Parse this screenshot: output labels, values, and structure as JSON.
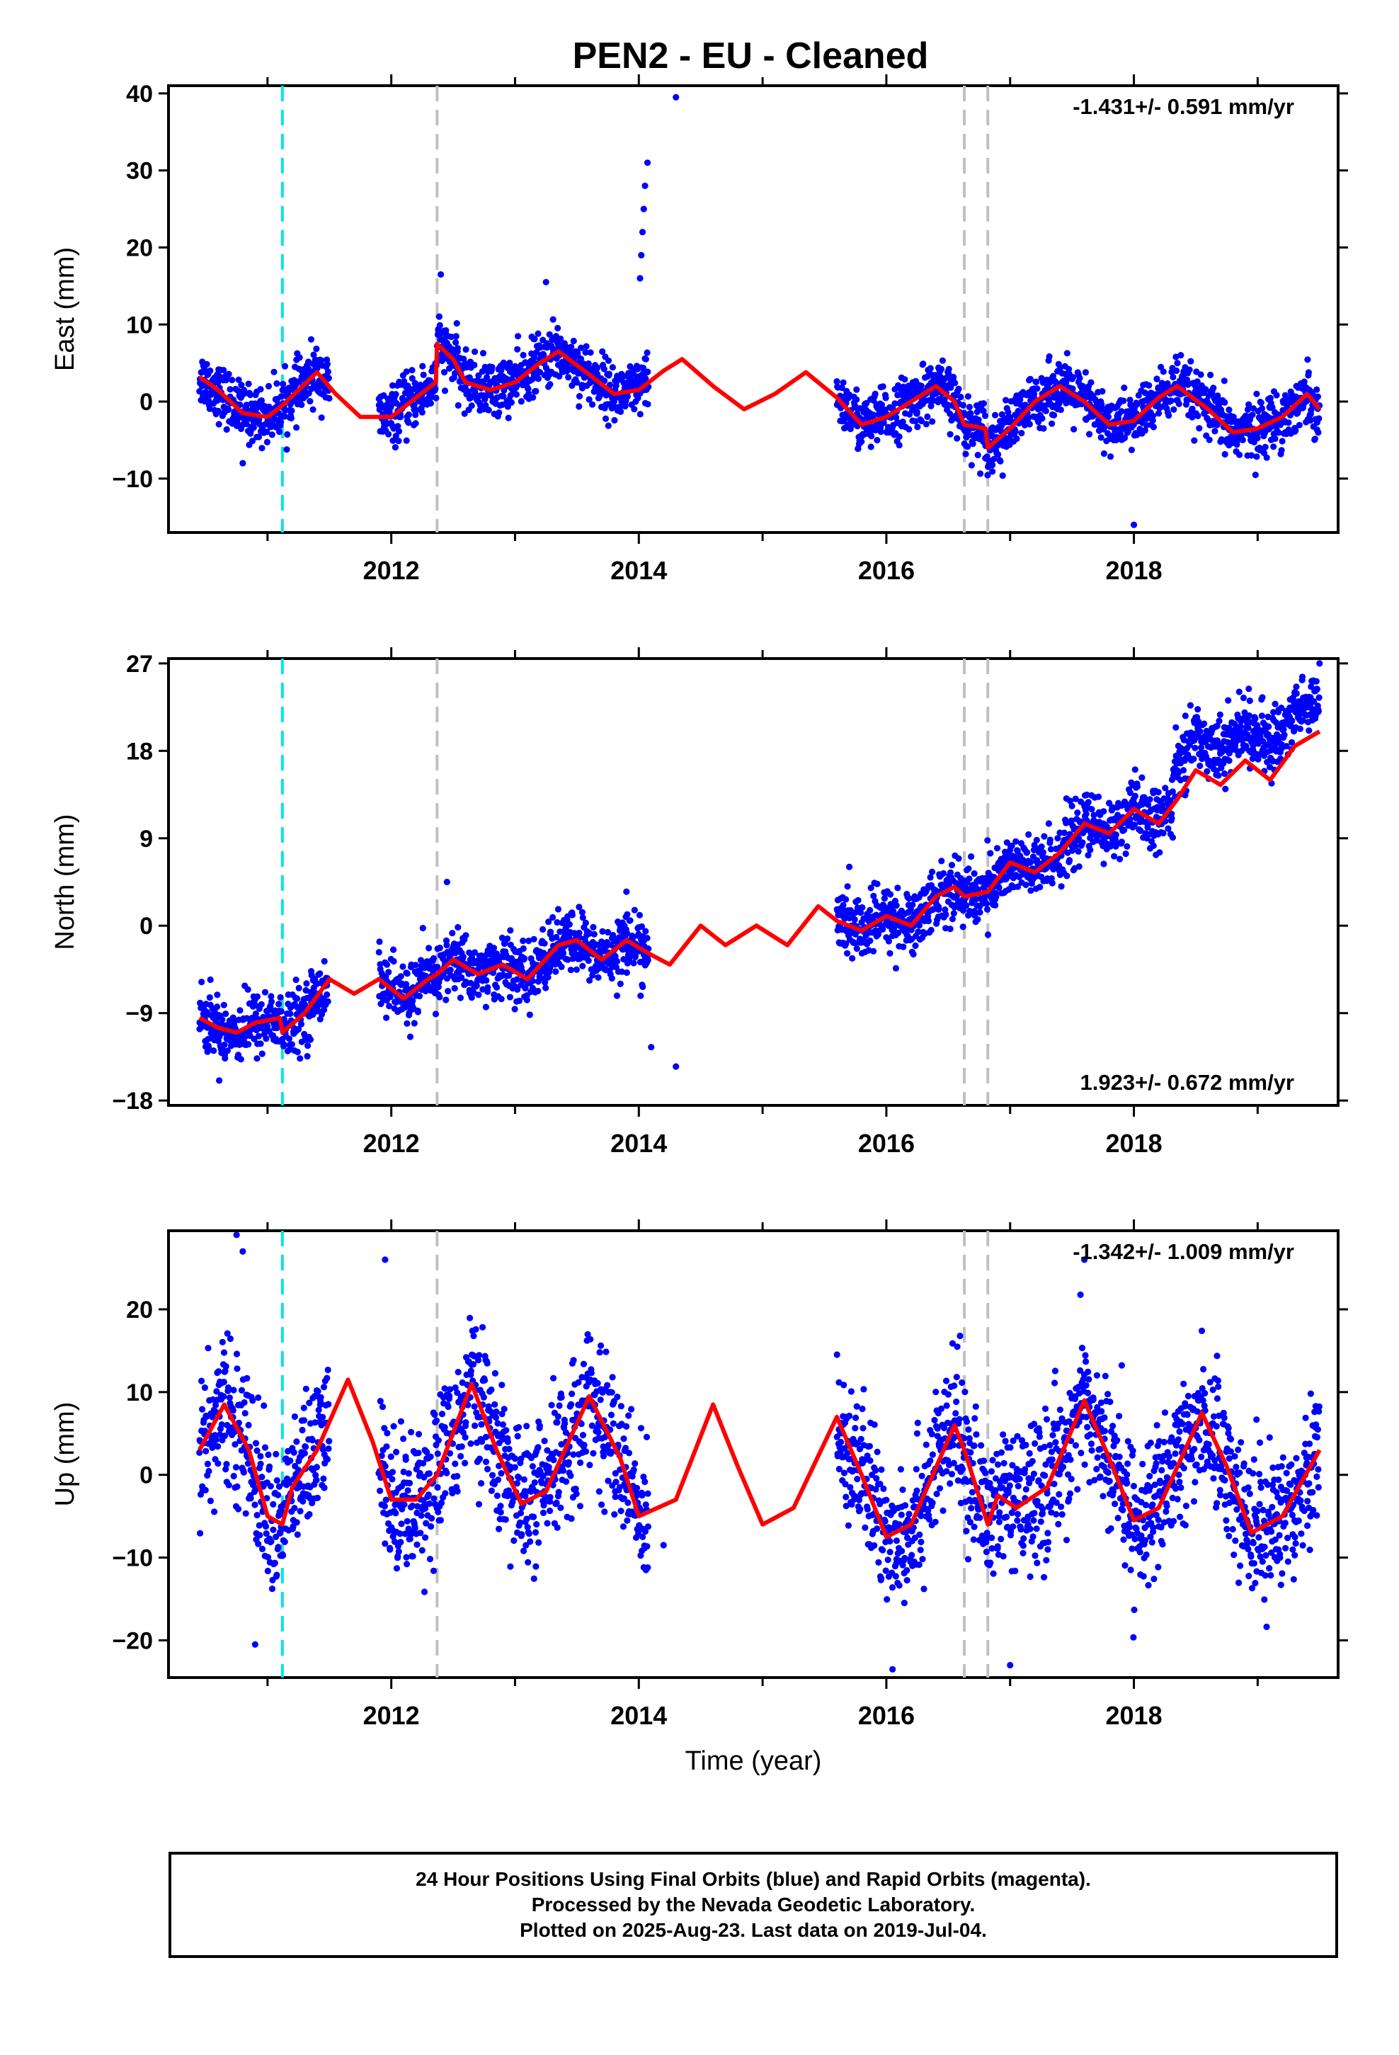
{
  "title": "PEN2  - EU - Cleaned",
  "colors": {
    "points": "#0000ff",
    "model": "#ff0000",
    "steps_cyan": "#00e5e5",
    "steps_gray": "#c0c0c0",
    "axes": "#000000"
  },
  "caption": {
    "line1": "24 Hour Positions Using Final Orbits (blue) and Rapid Orbits (magenta).",
    "line2": "Processed by the Nevada Geodetic Laboratory.",
    "line3": "Plotted on 2025-Aug-23. Last data on 2019-Jul-04."
  },
  "chart_data": [
    {
      "type": "scatter",
      "component": "east",
      "ylabel": "East (mm)",
      "xlabel": "",
      "rate_label": "-1.431+/- 0.591 mm/yr",
      "rate_position": "top-right",
      "xlim": [
        2010.2,
        2019.65
      ],
      "ylim": [
        -17,
        41
      ],
      "x_major_ticks": [
        2012,
        2014,
        2016,
        2018
      ],
      "x_minor_ticks": [
        2011,
        2013,
        2015,
        2017,
        2019
      ],
      "y_ticks": [
        40,
        30,
        20,
        10,
        0,
        -10
      ],
      "y_tick_labels": [
        "40",
        "30",
        "20",
        "10",
        "0",
        "−10"
      ],
      "grid": false,
      "step_lines": [
        {
          "x": 2011.12,
          "color": "cyan"
        },
        {
          "x": 2012.37,
          "color": "gray"
        },
        {
          "x": 2016.63,
          "color": "gray"
        },
        {
          "x": 2016.82,
          "color": "gray"
        }
      ],
      "data_segments": [
        {
          "start": 2010.45,
          "end": 2011.5
        },
        {
          "start": 2011.9,
          "end": 2014.08
        },
        {
          "start": 2015.6,
          "end": 2019.5
        }
      ],
      "model_curve": [
        [
          2010.45,
          3.2
        ],
        [
          2010.6,
          1.5
        ],
        [
          2010.8,
          -1.5
        ],
        [
          2011.0,
          -2.0
        ],
        [
          2011.12,
          -0.5
        ],
        [
          2011.25,
          1.5
        ],
        [
          2011.4,
          3.8
        ],
        [
          2011.55,
          1.0
        ],
        [
          2011.75,
          -2.0
        ],
        [
          2012.0,
          -2.0
        ],
        [
          2012.2,
          0.5
        ],
        [
          2012.36,
          2.5
        ],
        [
          2012.37,
          7.5
        ],
        [
          2012.5,
          5.5
        ],
        [
          2012.6,
          2.5
        ],
        [
          2012.8,
          1.5
        ],
        [
          2013.0,
          2.5
        ],
        [
          2013.2,
          5.0
        ],
        [
          2013.35,
          6.5
        ],
        [
          2013.6,
          3.5
        ],
        [
          2013.8,
          1.0
        ],
        [
          2014.0,
          1.5
        ],
        [
          2014.2,
          4.0
        ],
        [
          2014.35,
          5.5
        ],
        [
          2014.6,
          2.0
        ],
        [
          2014.85,
          -1.0
        ],
        [
          2015.1,
          1.0
        ],
        [
          2015.35,
          3.8
        ],
        [
          2015.6,
          0.5
        ],
        [
          2015.8,
          -3.0
        ],
        [
          2016.0,
          -2.0
        ],
        [
          2016.2,
          0.0
        ],
        [
          2016.4,
          2.0
        ],
        [
          2016.55,
          0.0
        ],
        [
          2016.63,
          -3.0
        ],
        [
          2016.8,
          -3.5
        ],
        [
          2016.82,
          -6.0
        ],
        [
          2017.0,
          -3.5
        ],
        [
          2017.2,
          0.0
        ],
        [
          2017.4,
          2.0
        ],
        [
          2017.6,
          0.0
        ],
        [
          2017.8,
          -3.0
        ],
        [
          2018.0,
          -2.5
        ],
        [
          2018.2,
          0.5
        ],
        [
          2018.35,
          2.0
        ],
        [
          2018.6,
          -1.0
        ],
        [
          2018.8,
          -4.0
        ],
        [
          2019.0,
          -3.5
        ],
        [
          2019.2,
          -2.0
        ],
        [
          2019.4,
          1.0
        ],
        [
          2019.5,
          -1.0
        ]
      ],
      "outliers": [
        [
          2012.4,
          16.5
        ],
        [
          2013.25,
          15.5
        ],
        [
          2014.07,
          31
        ],
        [
          2014.05,
          28
        ],
        [
          2014.04,
          25
        ],
        [
          2014.03,
          22
        ],
        [
          2014.02,
          19
        ],
        [
          2014.01,
          16
        ],
        [
          2014.3,
          39.5
        ],
        [
          2010.8,
          -8
        ],
        [
          2018.0,
          -16
        ]
      ]
    },
    {
      "type": "scatter",
      "component": "north",
      "ylabel": "North (mm)",
      "xlabel": "",
      "rate_label": "1.923+/- 0.672 mm/yr",
      "rate_position": "bottom-right",
      "xlim": [
        2010.2,
        2019.65
      ],
      "ylim": [
        -18.5,
        27.5
      ],
      "x_major_ticks": [
        2012,
        2014,
        2016,
        2018
      ],
      "x_minor_ticks": [
        2011,
        2013,
        2015,
        2017,
        2019
      ],
      "y_ticks": [
        27,
        18,
        9,
        0,
        -9,
        -18
      ],
      "y_tick_labels": [
        "27",
        "18",
        "9",
        "0",
        "−9",
        "−18"
      ],
      "grid": false,
      "step_lines": [
        {
          "x": 2011.12,
          "color": "cyan"
        },
        {
          "x": 2012.37,
          "color": "gray"
        },
        {
          "x": 2016.63,
          "color": "gray"
        },
        {
          "x": 2016.82,
          "color": "gray"
        }
      ],
      "data_segments": [
        {
          "start": 2010.45,
          "end": 2011.5
        },
        {
          "start": 2011.9,
          "end": 2014.08
        },
        {
          "start": 2015.6,
          "end": 2018.3
        },
        {
          "start": 2018.3,
          "end": 2019.5
        }
      ],
      "model_curve": [
        [
          2010.45,
          -9.5
        ],
        [
          2010.6,
          -10.5
        ],
        [
          2010.75,
          -11.0
        ],
        [
          2010.9,
          -10.0
        ],
        [
          2011.1,
          -9.5
        ],
        [
          2011.12,
          -11.0
        ],
        [
          2011.3,
          -9.0
        ],
        [
          2011.5,
          -5.5
        ],
        [
          2011.7,
          -7.0
        ],
        [
          2011.9,
          -5.5
        ],
        [
          2012.1,
          -7.5
        ],
        [
          2012.3,
          -5.5
        ],
        [
          2012.37,
          -5.0
        ],
        [
          2012.5,
          -3.5
        ],
        [
          2012.7,
          -5.0
        ],
        [
          2012.9,
          -4.0
        ],
        [
          2013.1,
          -5.5
        ],
        [
          2013.35,
          -2.0
        ],
        [
          2013.5,
          -1.5
        ],
        [
          2013.7,
          -3.5
        ],
        [
          2013.9,
          -1.5
        ],
        [
          2014.1,
          -3.0
        ],
        [
          2014.25,
          -4.0
        ],
        [
          2014.5,
          0.0
        ],
        [
          2014.7,
          -2.0
        ],
        [
          2014.95,
          0.0
        ],
        [
          2015.2,
          -2.0
        ],
        [
          2015.45,
          2.0
        ],
        [
          2015.6,
          0.5
        ],
        [
          2015.8,
          -0.5
        ],
        [
          2016.0,
          1.0
        ],
        [
          2016.2,
          0.0
        ],
        [
          2016.4,
          3.0
        ],
        [
          2016.55,
          4.0
        ],
        [
          2016.63,
          3.0
        ],
        [
          2016.82,
          3.5
        ],
        [
          2017.0,
          6.5
        ],
        [
          2017.2,
          5.5
        ],
        [
          2017.4,
          7.5
        ],
        [
          2017.6,
          10.5
        ],
        [
          2017.8,
          9.5
        ],
        [
          2018.0,
          12.0
        ],
        [
          2018.2,
          10.5
        ],
        [
          2018.35,
          13.0
        ],
        [
          2018.5,
          16.0
        ],
        [
          2018.7,
          14.5
        ],
        [
          2018.9,
          17.0
        ],
        [
          2019.1,
          15.0
        ],
        [
          2019.3,
          18.5
        ],
        [
          2019.5,
          20.0
        ]
      ],
      "outliers": [
        [
          2012.45,
          4.5
        ],
        [
          2013.9,
          3.5
        ],
        [
          2014.3,
          -14.5
        ],
        [
          2014.1,
          -12.5
        ],
        [
          2019.5,
          27
        ]
      ]
    },
    {
      "type": "scatter",
      "component": "up",
      "ylabel": "Up (mm)",
      "xlabel": "Time (year)",
      "rate_label": "-1.342+/- 1.009 mm/yr",
      "rate_position": "top-right",
      "xlim": [
        2010.2,
        2019.65
      ],
      "ylim": [
        -24.5,
        29.5
      ],
      "x_major_ticks": [
        2012,
        2014,
        2016,
        2018
      ],
      "x_minor_ticks": [
        2011,
        2013,
        2015,
        2017,
        2019
      ],
      "y_ticks": [
        20,
        10,
        0,
        -10,
        -20
      ],
      "y_tick_labels": [
        "20",
        "10",
        "0",
        "−10",
        "−20"
      ],
      "grid": false,
      "step_lines": [
        {
          "x": 2011.12,
          "color": "cyan"
        },
        {
          "x": 2012.37,
          "color": "gray"
        },
        {
          "x": 2016.63,
          "color": "gray"
        },
        {
          "x": 2016.82,
          "color": "gray"
        }
      ],
      "data_segments": [
        {
          "start": 2010.45,
          "end": 2011.5
        },
        {
          "start": 2011.9,
          "end": 2014.08
        },
        {
          "start": 2015.6,
          "end": 2019.5
        }
      ],
      "model_curve": [
        [
          2010.45,
          3.0
        ],
        [
          2010.65,
          8.5
        ],
        [
          2010.85,
          3.0
        ],
        [
          2011.0,
          -5.0
        ],
        [
          2011.12,
          -6.0
        ],
        [
          2011.2,
          -1.5
        ],
        [
          2011.4,
          3.0
        ],
        [
          2011.65,
          11.5
        ],
        [
          2011.85,
          4.0
        ],
        [
          2012.0,
          -3.0
        ],
        [
          2012.2,
          -3.0
        ],
        [
          2012.37,
          0.0
        ],
        [
          2012.65,
          11.0
        ],
        [
          2012.85,
          3.0
        ],
        [
          2013.05,
          -3.5
        ],
        [
          2013.25,
          -2.0
        ],
        [
          2013.6,
          9.5
        ],
        [
          2013.85,
          2.0
        ],
        [
          2014.0,
          -5.0
        ],
        [
          2014.3,
          -3.0
        ],
        [
          2014.6,
          8.5
        ],
        [
          2014.8,
          1.0
        ],
        [
          2015.0,
          -6.0
        ],
        [
          2015.25,
          -4.0
        ],
        [
          2015.6,
          7.0
        ],
        [
          2015.8,
          0.0
        ],
        [
          2016.0,
          -7.5
        ],
        [
          2016.2,
          -6.0
        ],
        [
          2016.55,
          6.0
        ],
        [
          2016.63,
          3.0
        ],
        [
          2016.82,
          -6.0
        ],
        [
          2016.9,
          -2.5
        ],
        [
          2017.05,
          -4.0
        ],
        [
          2017.3,
          -1.5
        ],
        [
          2017.6,
          9.0
        ],
        [
          2017.8,
          2.0
        ],
        [
          2018.0,
          -5.5
        ],
        [
          2018.2,
          -4.0
        ],
        [
          2018.55,
          7.5
        ],
        [
          2018.75,
          1.0
        ],
        [
          2018.95,
          -7.0
        ],
        [
          2019.2,
          -5.0
        ],
        [
          2019.5,
          3.0
        ]
      ],
      "outliers": [
        [
          2010.75,
          29
        ],
        [
          2010.8,
          27
        ],
        [
          2011.95,
          26
        ],
        [
          2017.6,
          26
        ],
        [
          2016.05,
          -23.5
        ],
        [
          2017.0,
          -23
        ],
        [
          2010.9,
          -20.5
        ],
        [
          2014.2,
          -8.5
        ]
      ]
    }
  ]
}
